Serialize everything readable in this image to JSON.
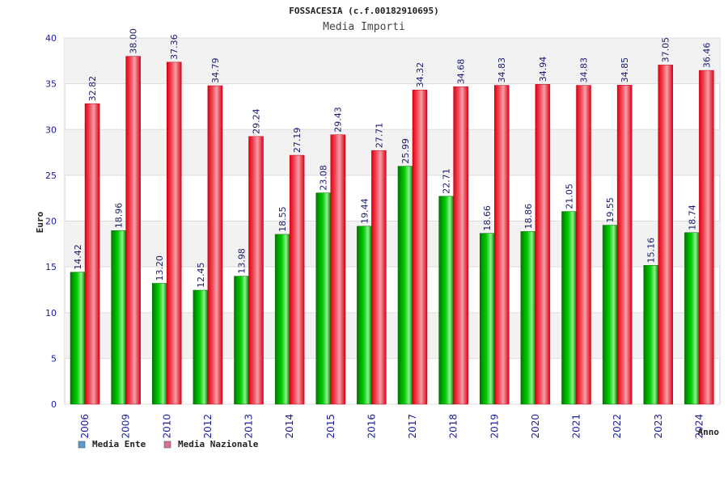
{
  "chart_data": {
    "type": "bar",
    "title": "FOSSACESIA (c.f.00182910695)",
    "subtitle": "Media Importi",
    "xlabel": "Anno",
    "ylabel": "Euro",
    "ylim": [
      0,
      40
    ],
    "yticks": [
      "0",
      "5",
      "10",
      "15",
      "20",
      "25",
      "30",
      "35",
      "40"
    ],
    "grid": true,
    "legend_position": "bottom-left",
    "categories": [
      "2006",
      "2009",
      "2010",
      "2012",
      "2013",
      "2014",
      "2015",
      "2016",
      "2017",
      "2018",
      "2019",
      "2020",
      "2021",
      "2022",
      "2023",
      "2024"
    ],
    "series": [
      {
        "name": "Media Ente",
        "color": "#00aa00",
        "legend_color": "#5b9bd5",
        "values": [
          14.42,
          18.96,
          13.2,
          12.45,
          13.98,
          18.55,
          23.08,
          19.44,
          25.99,
          22.71,
          18.66,
          18.86,
          21.05,
          19.55,
          15.16,
          18.74
        ],
        "labels": [
          "14.42",
          "18.96",
          "13.20",
          "12.45",
          "13.98",
          "18.55",
          "23.08",
          "19.44",
          "25.99",
          "22.71",
          "18.66",
          "18.86",
          "21.05",
          "19.55",
          "15.16",
          "18.74"
        ]
      },
      {
        "name": "Media Nazionale",
        "color": "#e8001c",
        "legend_color": "#d9709a",
        "values": [
          32.82,
          38.0,
          37.36,
          34.79,
          29.24,
          27.19,
          29.43,
          27.71,
          34.32,
          34.68,
          34.83,
          34.94,
          34.83,
          34.85,
          37.05,
          36.46
        ],
        "labels": [
          "32.82",
          "38.00",
          "37.36",
          "34.79",
          "29.24",
          "27.19",
          "29.43",
          "27.71",
          "34.32",
          "34.68",
          "34.83",
          "34.94",
          "34.83",
          "34.85",
          "37.05",
          "36.46"
        ]
      }
    ]
  }
}
